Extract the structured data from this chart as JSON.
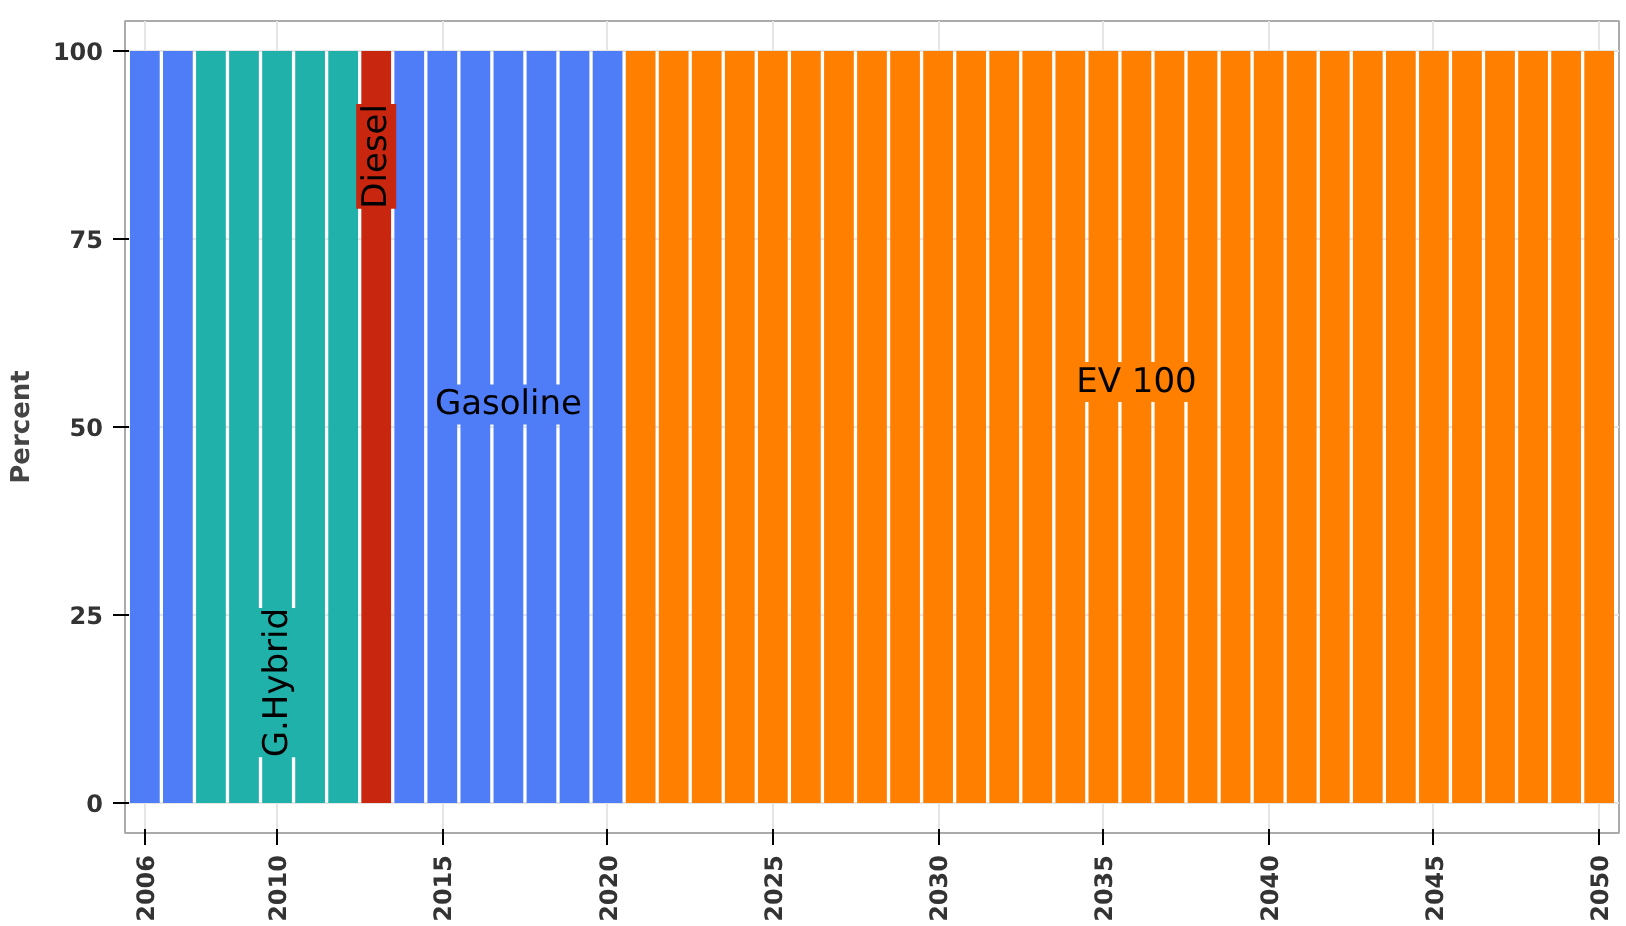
{
  "chart_data": {
    "type": "bar",
    "ylabel": "Percent",
    "x": [
      2006,
      2007,
      2008,
      2009,
      2010,
      2011,
      2012,
      2013,
      2014,
      2015,
      2016,
      2017,
      2018,
      2019,
      2020,
      2021,
      2022,
      2023,
      2024,
      2025,
      2026,
      2027,
      2028,
      2029,
      2030,
      2031,
      2032,
      2033,
      2034,
      2035,
      2036,
      2037,
      2038,
      2039,
      2040,
      2041,
      2042,
      2043,
      2044,
      2045,
      2046,
      2047,
      2048,
      2049,
      2050
    ],
    "series": [
      {
        "name": "Gasoline",
        "color": "#4f7cf7",
        "values": [
          100,
          100,
          null,
          null,
          null,
          null,
          null,
          null,
          100,
          100,
          100,
          100,
          100,
          100,
          100,
          null,
          null,
          null,
          null,
          null,
          null,
          null,
          null,
          null,
          null,
          null,
          null,
          null,
          null,
          null,
          null,
          null,
          null,
          null,
          null,
          null,
          null,
          null,
          null,
          null,
          null,
          null,
          null,
          null,
          null
        ]
      },
      {
        "name": "G.Hybrid",
        "color": "#20b2aa",
        "values": [
          null,
          null,
          100,
          100,
          100,
          100,
          100,
          null,
          null,
          null,
          null,
          null,
          null,
          null,
          null,
          null,
          null,
          null,
          null,
          null,
          null,
          null,
          null,
          null,
          null,
          null,
          null,
          null,
          null,
          null,
          null,
          null,
          null,
          null,
          null,
          null,
          null,
          null,
          null,
          null,
          null,
          null,
          null,
          null,
          null
        ]
      },
      {
        "name": "Diesel",
        "color": "#c8260f",
        "values": [
          null,
          null,
          null,
          null,
          null,
          null,
          null,
          100,
          null,
          null,
          null,
          null,
          null,
          null,
          null,
          null,
          null,
          null,
          null,
          null,
          null,
          null,
          null,
          null,
          null,
          null,
          null,
          null,
          null,
          null,
          null,
          null,
          null,
          null,
          null,
          null,
          null,
          null,
          null,
          null,
          null,
          null,
          null,
          null,
          null
        ]
      },
      {
        "name": "EV 100",
        "color": "#ff8000",
        "values": [
          null,
          null,
          null,
          null,
          null,
          null,
          null,
          null,
          null,
          null,
          null,
          null,
          null,
          null,
          null,
          100,
          100,
          100,
          100,
          100,
          100,
          100,
          100,
          100,
          100,
          100,
          100,
          100,
          100,
          100,
          100,
          100,
          100,
          100,
          100,
          100,
          100,
          100,
          100,
          100,
          100,
          100,
          100,
          100,
          100
        ]
      }
    ],
    "xlim": [
      2005.4,
      2050.6
    ],
    "xticks": [
      2006,
      2010,
      2015,
      2020,
      2025,
      2030,
      2035,
      2040,
      2045,
      2050
    ],
    "ylim": [
      -4,
      104
    ],
    "yticks": [
      0,
      25,
      50,
      75,
      100
    ],
    "grid": true
  }
}
